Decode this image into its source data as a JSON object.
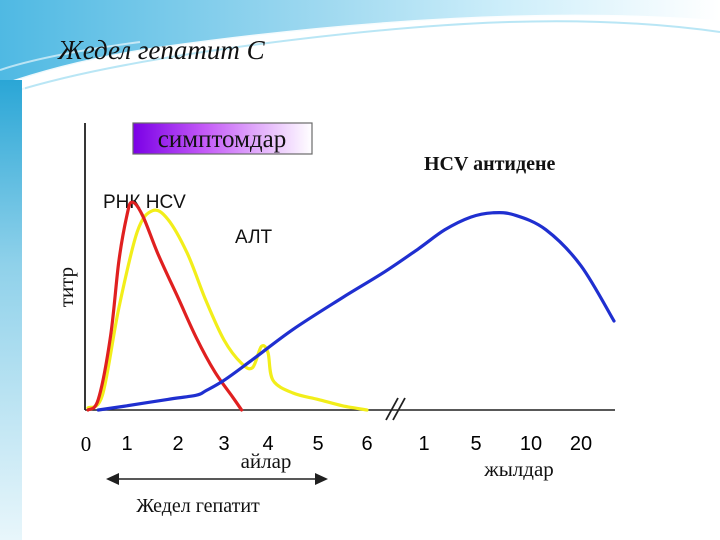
{
  "slide_title": "Жедел  гепатит С",
  "colors": {
    "rna": "#e02020",
    "alt": "#f2ee1a",
    "antibody": "#1f2fd0",
    "symptoms_bg": "#9b19f5",
    "header_bg": "#2aa6d6",
    "axis": "#202020"
  },
  "chart_data": {
    "type": "line",
    "title": "",
    "ylabel": "титр",
    "symptoms_label": "симптомдар",
    "annotations": {
      "rna": "РНК HCV",
      "alt": "АЛТ",
      "antibody": "HCV антидене"
    },
    "x_ticks_months": [
      "0",
      "1",
      "2",
      "3",
      "4",
      "5",
      "6"
    ],
    "x_ticks_years": [
      "1",
      "5",
      "10",
      "20"
    ],
    "months_label": "айлар",
    "years_label": "жылдар",
    "acute_label": "Жедел гепатит",
    "axis_break": true,
    "y_scale": "relative titer (0–1)",
    "series": [
      {
        "key": "rna",
        "name": "РНК HCV",
        "points": [
          [
            0.05,
            0.0
          ],
          [
            0.3,
            0.05
          ],
          [
            0.6,
            0.35
          ],
          [
            0.8,
            0.7
          ],
          [
            1.0,
            0.92
          ],
          [
            1.1,
            0.98
          ],
          [
            1.3,
            0.92
          ],
          [
            1.6,
            0.74
          ],
          [
            2.0,
            0.53
          ],
          [
            2.4,
            0.34
          ],
          [
            2.8,
            0.18
          ],
          [
            3.2,
            0.06
          ],
          [
            3.4,
            0.0
          ]
        ]
      },
      {
        "key": "alt",
        "name": "АЛТ",
        "points": [
          [
            0.05,
            0.01
          ],
          [
            0.4,
            0.07
          ],
          [
            0.8,
            0.48
          ],
          [
            1.2,
            0.84
          ],
          [
            1.5,
            0.94
          ],
          [
            1.8,
            0.9
          ],
          [
            2.2,
            0.74
          ],
          [
            2.6,
            0.52
          ],
          [
            3.0,
            0.33
          ],
          [
            3.4,
            0.22
          ],
          [
            3.65,
            0.2
          ],
          [
            3.85,
            0.3
          ],
          [
            4.0,
            0.27
          ],
          [
            4.1,
            0.14
          ],
          [
            4.5,
            0.08
          ],
          [
            5.0,
            0.05
          ],
          [
            5.5,
            0.02
          ],
          [
            6.0,
            0.0
          ]
        ]
      },
      {
        "key": "antibody",
        "name": "HCV антидене",
        "points": [
          [
            0.3,
            0.0
          ],
          [
            1.0,
            0.02
          ],
          [
            1.8,
            0.05
          ],
          [
            2.4,
            0.07
          ],
          [
            2.6,
            0.09
          ],
          [
            3.0,
            0.14
          ],
          [
            3.6,
            0.23
          ],
          [
            4.5,
            0.38
          ],
          [
            5.5,
            0.53
          ],
          [
            6.3,
            0.65
          ],
          [
            6.9,
            0.76
          ],
          [
            7.4,
            0.85
          ],
          [
            7.9,
            0.91
          ],
          [
            8.3,
            0.93
          ],
          [
            8.7,
            0.92
          ],
          [
            9.3,
            0.85
          ],
          [
            10.0,
            0.68
          ],
          [
            10.7,
            0.42
          ]
        ]
      }
    ]
  }
}
